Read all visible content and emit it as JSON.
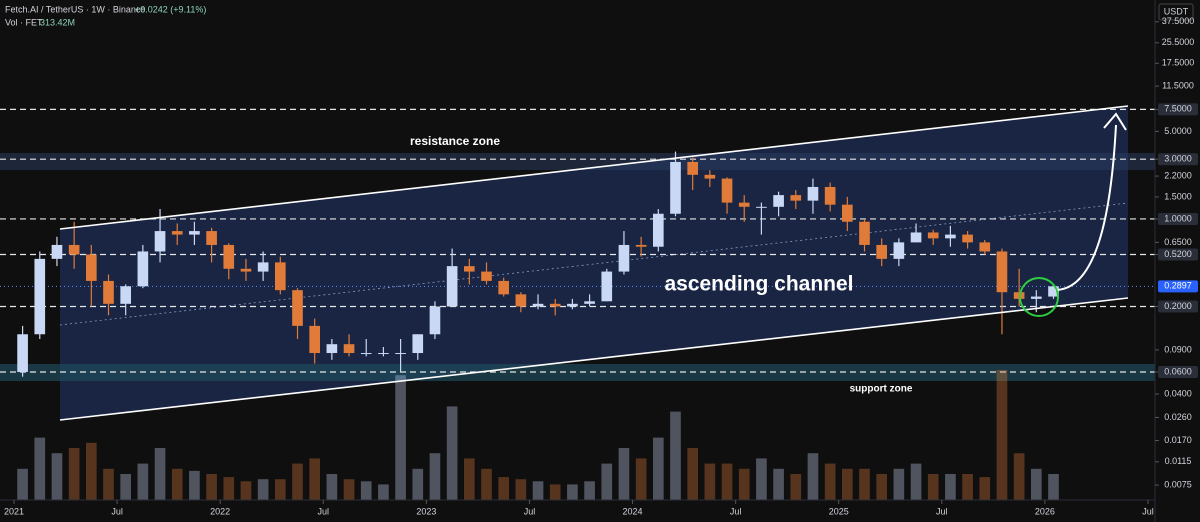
{
  "chart_data": {
    "type": "candlestick",
    "title": "Fetch.AI / TetherUS · 1W · Binance",
    "change": "+0.0242 (+9.11%)",
    "volume_title": "Vol · FET",
    "volume_last": "313.42M",
    "currency": "USDT",
    "annotations": {
      "resistance": "resistance zone",
      "support": "support zone",
      "channel": "ascending channel"
    },
    "log_scale": true,
    "up_color": "#c9d8f5",
    "down_color": "#e07b39",
    "x": [
      "2021-01",
      "2021-02",
      "2021-03",
      "2021-04",
      "2021-05",
      "2021-06",
      "2021-07",
      "2021-08",
      "2021-09",
      "2021-10",
      "2021-11",
      "2021-12",
      "2022-01",
      "2022-02",
      "2022-03",
      "2022-04",
      "2022-05",
      "2022-06",
      "2022-07",
      "2022-08",
      "2022-09",
      "2022-10",
      "2022-11",
      "2022-12",
      "2023-01",
      "2023-02",
      "2023-03",
      "2023-04",
      "2023-05",
      "2023-06",
      "2023-07",
      "2023-08",
      "2023-09",
      "2023-10",
      "2023-11",
      "2023-12",
      "2024-01",
      "2024-02",
      "2024-03",
      "2024-04",
      "2024-05",
      "2024-06",
      "2024-07",
      "2024-08",
      "2024-09",
      "2024-10",
      "2024-11",
      "2024-12",
      "2025-01",
      "2025-02",
      "2025-03",
      "2025-04",
      "2025-05",
      "2025-06",
      "2025-07",
      "2025-08",
      "2025-09",
      "2025-10",
      "2025-11",
      "2025-12",
      "2026-01"
    ],
    "open": [
      0.06,
      0.12,
      0.48,
      0.62,
      0.52,
      0.32,
      0.21,
      0.29,
      0.55,
      0.8,
      0.75,
      0.8,
      0.62,
      0.4,
      0.38,
      0.45,
      0.27,
      0.14,
      0.085,
      0.1,
      0.085,
      0.085,
      0.085,
      0.085,
      0.12,
      0.2,
      0.42,
      0.38,
      0.32,
      0.25,
      0.2,
      0.21,
      0.2,
      0.21,
      0.22,
      0.38,
      0.62,
      0.6,
      1.1,
      2.85,
      2.25,
      2.1,
      1.35,
      1.25,
      1.25,
      1.55,
      1.4,
      1.8,
      1.3,
      0.95,
      0.62,
      0.48,
      0.65,
      0.78,
      0.7,
      0.75,
      0.65,
      0.55,
      0.26,
      0.23,
      0.24
    ],
    "high": [
      0.14,
      0.55,
      0.72,
      0.95,
      0.62,
      0.36,
      0.3,
      0.62,
      1.2,
      0.92,
      0.95,
      0.85,
      0.64,
      0.48,
      0.55,
      0.5,
      0.28,
      0.16,
      0.11,
      0.12,
      0.11,
      0.095,
      0.11,
      0.12,
      0.22,
      0.58,
      0.48,
      0.45,
      0.34,
      0.26,
      0.25,
      0.23,
      0.23,
      0.25,
      0.4,
      0.8,
      0.72,
      1.2,
      3.45,
      3.1,
      2.45,
      2.15,
      1.55,
      1.35,
      1.65,
      1.7,
      2.1,
      1.95,
      1.5,
      1.0,
      0.7,
      0.7,
      0.92,
      0.82,
      0.88,
      0.8,
      0.68,
      0.58,
      0.4,
      0.27,
      0.3
    ],
    "low": [
      0.055,
      0.11,
      0.42,
      0.4,
      0.2,
      0.17,
      0.17,
      0.28,
      0.45,
      0.62,
      0.62,
      0.45,
      0.33,
      0.32,
      0.32,
      0.25,
      0.11,
      0.07,
      0.075,
      0.08,
      0.08,
      0.08,
      0.06,
      0.075,
      0.11,
      0.2,
      0.3,
      0.3,
      0.24,
      0.18,
      0.19,
      0.17,
      0.19,
      0.2,
      0.22,
      0.36,
      0.5,
      0.55,
      1.05,
      1.7,
      1.8,
      1.1,
      0.95,
      0.75,
      1.05,
      1.2,
      1.1,
      1.15,
      0.8,
      0.55,
      0.42,
      0.42,
      0.65,
      0.62,
      0.6,
      0.58,
      0.52,
      0.12,
      0.2,
      0.18,
      0.23
    ],
    "close": [
      0.12,
      0.48,
      0.62,
      0.52,
      0.32,
      0.21,
      0.29,
      0.55,
      0.8,
      0.75,
      0.8,
      0.62,
      0.4,
      0.38,
      0.45,
      0.27,
      0.14,
      0.085,
      0.1,
      0.085,
      0.085,
      0.085,
      0.085,
      0.12,
      0.2,
      0.42,
      0.38,
      0.32,
      0.25,
      0.2,
      0.21,
      0.2,
      0.21,
      0.22,
      0.38,
      0.62,
      0.6,
      1.1,
      2.85,
      2.25,
      2.1,
      1.35,
      1.25,
      1.25,
      1.55,
      1.4,
      1.8,
      1.3,
      0.95,
      0.62,
      0.48,
      0.65,
      0.78,
      0.7,
      0.75,
      0.65,
      0.55,
      0.26,
      0.23,
      0.24,
      0.2897
    ],
    "volume": [
      30,
      60,
      45,
      50,
      55,
      30,
      25,
      35,
      50,
      30,
      28,
      25,
      22,
      18,
      20,
      20,
      35,
      40,
      25,
      20,
      18,
      15,
      120,
      30,
      45,
      90,
      40,
      30,
      22,
      20,
      18,
      15,
      15,
      18,
      35,
      50,
      40,
      60,
      85,
      50,
      35,
      35,
      30,
      40,
      30,
      25,
      45,
      35,
      30,
      30,
      25,
      30,
      35,
      25,
      25,
      25,
      22,
      125,
      45,
      30,
      25
    ],
    "xlim": [
      "2021-01",
      "2026-07"
    ],
    "xticks": [
      {
        "value": "2021-01",
        "label": "2021"
      },
      {
        "value": "2021-07",
        "label": "Jul"
      },
      {
        "value": "2022-01",
        "label": "2022"
      },
      {
        "value": "2022-07",
        "label": "Jul"
      },
      {
        "value": "2023-01",
        "label": "2023"
      },
      {
        "value": "2023-07",
        "label": "Jul"
      },
      {
        "value": "2024-01",
        "label": "2024"
      },
      {
        "value": "2024-07",
        "label": "Jul"
      },
      {
        "value": "2025-01",
        "label": "2025"
      },
      {
        "value": "2025-07",
        "label": "Jul"
      },
      {
        "value": "2026-01",
        "label": "2026"
      },
      {
        "value": "2026-07",
        "label": "Jul"
      }
    ],
    "ylim": [
      0.0057,
      56
    ],
    "yticks": [
      {
        "value": 37.5,
        "label": "37.5000"
      },
      {
        "value": 25.5,
        "label": "25.5000"
      },
      {
        "value": 17.5,
        "label": "17.5000"
      },
      {
        "value": 11.5,
        "label": "11.5000"
      },
      {
        "value": 7.5,
        "label": "7.5000",
        "level": true
      },
      {
        "value": 5,
        "label": "5.0000"
      },
      {
        "value": 3,
        "label": "3.0000",
        "level": true
      },
      {
        "value": 2.2,
        "label": "2.2000"
      },
      {
        "value": 1.5,
        "label": "1.5000"
      },
      {
        "value": 1,
        "label": "1.0000",
        "level": true
      },
      {
        "value": 0.65,
        "label": "0.6500"
      },
      {
        "value": 0.52,
        "label": "0.5200",
        "level": true
      },
      {
        "value": 0.2,
        "label": "0.2000",
        "level": true
      },
      {
        "value": 0.09,
        "label": "0.0900"
      },
      {
        "value": 0.06,
        "label": "0.0600",
        "level": true
      },
      {
        "value": 0.04,
        "label": "0.0400"
      },
      {
        "value": 0.026,
        "label": "0.0260"
      },
      {
        "value": 0.017,
        "label": "0.0170"
      },
      {
        "value": 0.0115,
        "label": "0.0115"
      },
      {
        "value": 0.0075,
        "label": "0.0075"
      }
    ],
    "last_price": {
      "value": 0.2897,
      "label": "0.2897"
    }
  }
}
